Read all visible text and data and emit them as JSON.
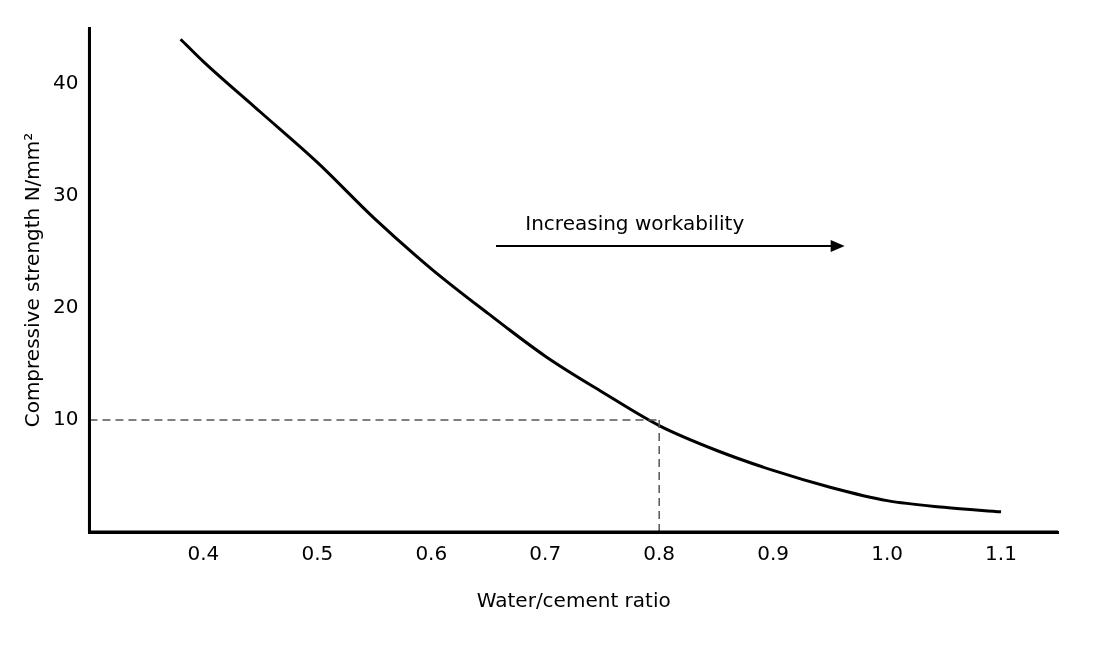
{
  "chart_data": {
    "type": "line",
    "xlabel": "Water/cement ratio",
    "ylabel": "Compressive strength N/mm²",
    "x": [
      0.38,
      0.4,
      0.45,
      0.5,
      0.55,
      0.6,
      0.65,
      0.7,
      0.75,
      0.8,
      0.85,
      0.9,
      0.95,
      1.0,
      1.05,
      1.1
    ],
    "series": [
      {
        "color": "#000000",
        "values": [
          44,
          42,
          37.5,
          33,
          28,
          23.5,
          19.5,
          15.7,
          12.5,
          9.5,
          7.3,
          5.5,
          4,
          2.8,
          2.2,
          1.8
        ]
      }
    ],
    "xlim": [
      0.3,
      1.15
    ],
    "xticks": [
      0.4,
      0.5,
      0.6,
      0.7,
      0.8,
      0.9,
      {
        "value": 1,
        "label": "1.0"
      },
      1.1
    ],
    "ylim": [
      0,
      45
    ],
    "yticks": [
      10,
      20,
      30,
      40
    ],
    "ref_lines": [
      {
        "axis": "y",
        "value": 10,
        "color": "#555555",
        "line_style": "dashed"
      },
      {
        "axis": "x",
        "value": 0.8,
        "color": "#555555",
        "line_style": "dashed"
      }
    ],
    "annotations": [
      "Increasing workability"
    ],
    "grid": false,
    "legend": false,
    "marker": "none",
    "line_style": "solid"
  }
}
